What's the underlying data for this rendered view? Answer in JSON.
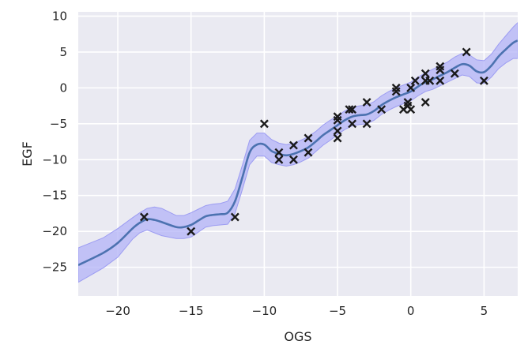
{
  "chart_data": {
    "type": "line",
    "title": "",
    "xlabel": "OGS",
    "ylabel": "EGF",
    "xlim": [
      -22.7,
      7.3
    ],
    "ylim": [
      -29.0,
      10.6
    ],
    "xticks": [
      -20,
      -15,
      -10,
      -5,
      0,
      5
    ],
    "yticks": [
      -25,
      -20,
      -15,
      -10,
      -5,
      0,
      5,
      10
    ],
    "xtick_labels": [
      "−20",
      "−15",
      "−10",
      "−5",
      "0",
      "5"
    ],
    "ytick_labels": [
      "−25",
      "−20",
      "−15",
      "−10",
      "−5",
      "0",
      "5",
      "10"
    ],
    "grid": true,
    "colors": {
      "background": "#eaeaf2",
      "grid": "#ffffff",
      "mean_line": "#4c72b0",
      "band_fill": "#b3b3f7",
      "band_edge": "#9c9cf2",
      "markers": "#1a1a1a"
    },
    "series": [
      {
        "type": "line",
        "x": [
          -22.7,
          -21,
          -20,
          -19,
          -18.5,
          -18,
          -17.5,
          -17,
          -16,
          -15.5,
          -15,
          -14.5,
          -14,
          -13.5,
          -13,
          -12.5,
          -12,
          -11.5,
          -11,
          -10.5,
          -10,
          -9.5,
          -9,
          -8.5,
          -8,
          -7.5,
          -7,
          -6.5,
          -6,
          -5.5,
          -5,
          -4.5,
          -4,
          -3.5,
          -3,
          -2.5,
          -2,
          -1.5,
          -1,
          -0.5,
          0,
          0.5,
          1,
          1.5,
          2,
          2.5,
          3,
          3.5,
          4,
          4.5,
          5,
          5.5,
          6,
          6.5,
          7,
          7.3
        ],
        "y": [
          -24.7,
          -23.0,
          -21.6,
          -19.6,
          -18.8,
          -18.3,
          -18.4,
          -18.7,
          -19.4,
          -19.4,
          -19.1,
          -18.5,
          -17.9,
          -17.7,
          -17.6,
          -17.4,
          -15.8,
          -12.5,
          -9.0,
          -7.9,
          -7.9,
          -8.8,
          -9.2,
          -9.4,
          -9.2,
          -8.8,
          -8.3,
          -7.5,
          -6.6,
          -5.9,
          -5.2,
          -4.5,
          -4.0,
          -3.8,
          -3.7,
          -3.2,
          -2.4,
          -1.8,
          -1.3,
          -0.9,
          -0.5,
          0.2,
          0.8,
          1.2,
          1.7,
          2.2,
          2.8,
          3.3,
          3.1,
          2.3,
          2.2,
          3.1,
          4.4,
          5.4,
          6.3,
          6.6
        ]
      },
      {
        "type": "band",
        "x": [
          -22.7,
          -21,
          -20,
          -19,
          -18.5,
          -18,
          -17.5,
          -17,
          -16,
          -15.5,
          -15,
          -14.5,
          -14,
          -13.5,
          -13,
          -12.5,
          -12,
          -11.5,
          -11,
          -10.5,
          -10,
          -9.5,
          -9,
          -8.5,
          -8,
          -7.5,
          -7,
          -6.5,
          -6,
          -5.5,
          -5,
          -4.5,
          -4,
          -3.5,
          -3,
          -2.5,
          -2,
          -1.5,
          -1,
          -0.5,
          0,
          0.5,
          1,
          1.5,
          2,
          2.5,
          3,
          3.5,
          4,
          4.5,
          5,
          5.5,
          6,
          6.5,
          7,
          7.3
        ],
        "upper": [
          -22.3,
          -20.9,
          -19.6,
          -18.1,
          -17.4,
          -16.8,
          -16.6,
          -16.8,
          -17.8,
          -17.8,
          -17.4,
          -16.9,
          -16.4,
          -16.2,
          -16.1,
          -15.8,
          -14.1,
          -10.8,
          -7.3,
          -6.3,
          -6.3,
          -7.2,
          -7.7,
          -7.9,
          -7.7,
          -7.3,
          -6.8,
          -6.1,
          -5.2,
          -4.5,
          -3.9,
          -3.2,
          -2.7,
          -2.5,
          -2.4,
          -1.9,
          -1.1,
          -0.5,
          0.0,
          0.4,
          0.8,
          1.5,
          2.1,
          2.6,
          3.1,
          3.6,
          4.3,
          4.8,
          4.6,
          3.9,
          3.8,
          4.7,
          6.1,
          7.3,
          8.5,
          9.1
        ],
        "lower": [
          -27.1,
          -25.1,
          -23.6,
          -21.1,
          -20.2,
          -19.8,
          -20.2,
          -20.6,
          -21.0,
          -21.0,
          -20.8,
          -20.1,
          -19.4,
          -19.2,
          -19.1,
          -19.0,
          -17.5,
          -14.2,
          -10.7,
          -9.5,
          -9.5,
          -10.4,
          -10.7,
          -10.9,
          -10.7,
          -10.3,
          -9.8,
          -8.9,
          -8.0,
          -7.3,
          -6.5,
          -5.8,
          -5.3,
          -5.1,
          -5.0,
          -4.5,
          -3.7,
          -3.1,
          -2.6,
          -2.2,
          -1.8,
          -1.1,
          -0.5,
          -0.2,
          0.3,
          0.8,
          1.3,
          1.8,
          1.6,
          0.7,
          0.6,
          1.5,
          2.7,
          3.5,
          4.1,
          4.1
        ]
      },
      {
        "type": "scatter",
        "points": [
          [
            -18.2,
            -18
          ],
          [
            -15,
            -20
          ],
          [
            -12,
            -18
          ],
          [
            -10,
            -5
          ],
          [
            -9,
            -9
          ],
          [
            -9,
            -10
          ],
          [
            -8,
            -8
          ],
          [
            -8,
            -10
          ],
          [
            -7,
            -7
          ],
          [
            -7,
            -9
          ],
          [
            -5,
            -4
          ],
          [
            -5,
            -4.5
          ],
          [
            -5,
            -6
          ],
          [
            -5,
            -7
          ],
          [
            -4,
            -3
          ],
          [
            -4.2,
            -3
          ],
          [
            -4,
            -5
          ],
          [
            -3,
            -2
          ],
          [
            -3,
            -5
          ],
          [
            -2,
            -3
          ],
          [
            -1,
            0
          ],
          [
            -1,
            -0.5
          ],
          [
            -0.5,
            -3
          ],
          [
            -0.2,
            -2.5
          ],
          [
            -0.2,
            -2
          ],
          [
            0,
            -3
          ],
          [
            0,
            0
          ],
          [
            0.3,
            1
          ],
          [
            1,
            2
          ],
          [
            1,
            1
          ],
          [
            1,
            -2
          ],
          [
            1.3,
            1
          ],
          [
            2,
            3
          ],
          [
            2,
            1
          ],
          [
            2,
            2.5
          ],
          [
            3,
            2
          ],
          [
            3.8,
            5
          ],
          [
            5,
            1
          ]
        ]
      }
    ]
  }
}
